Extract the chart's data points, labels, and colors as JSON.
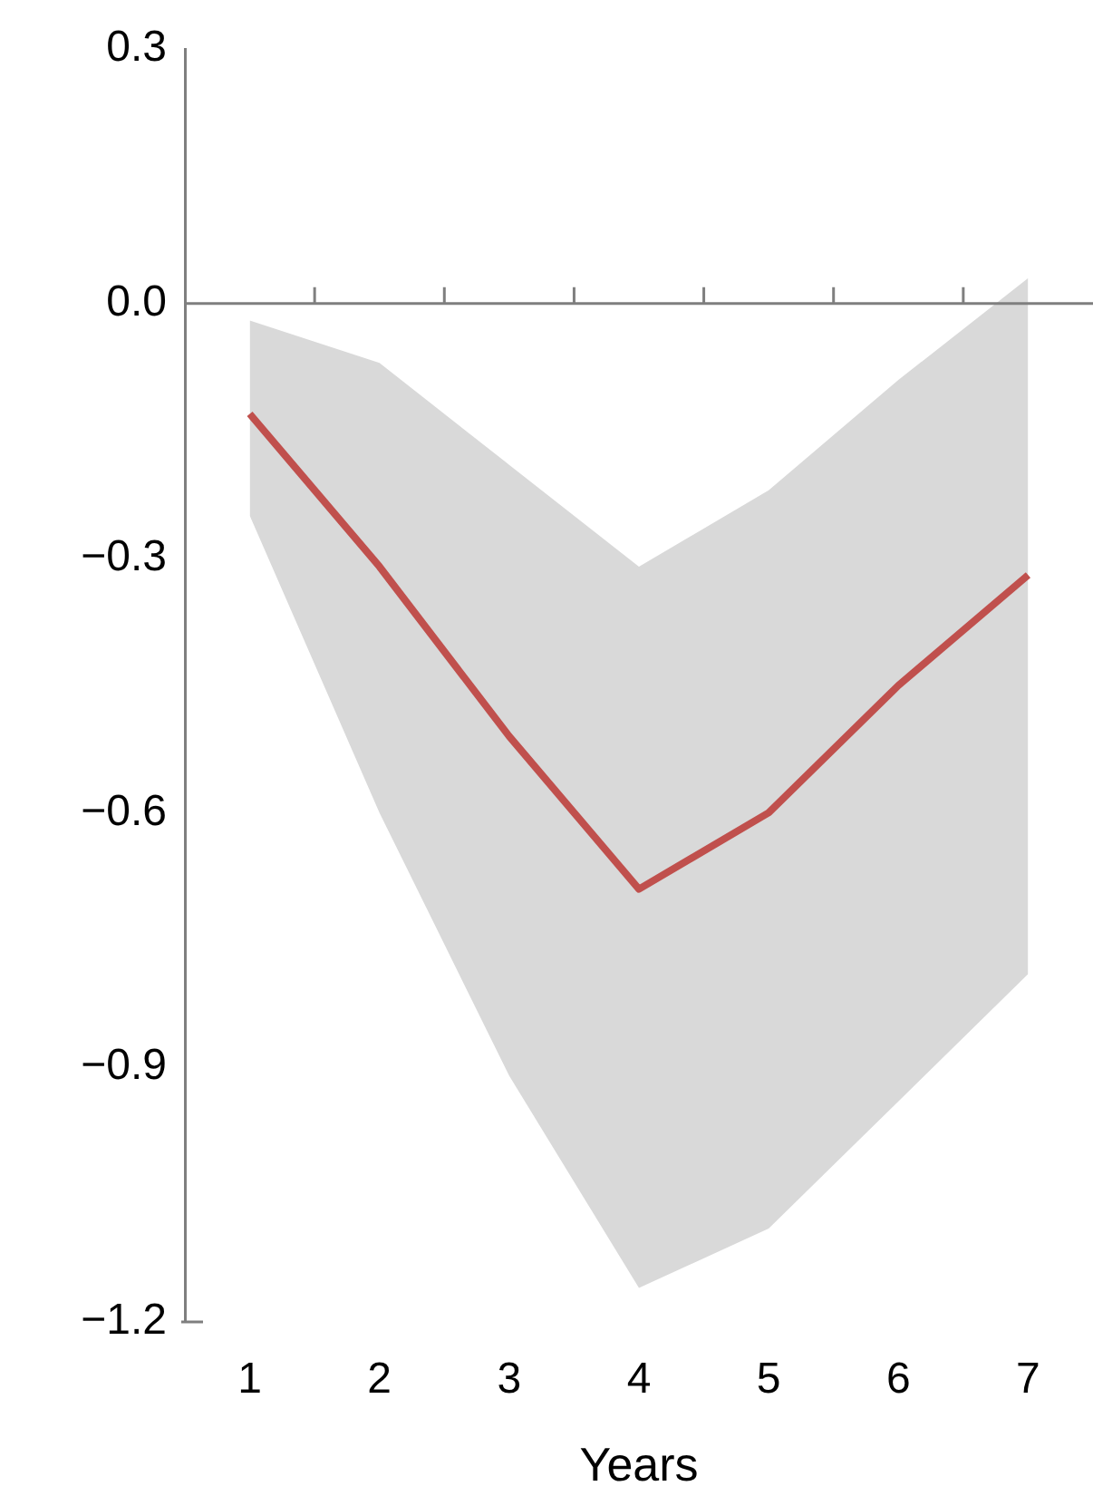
{
  "chart_data": {
    "type": "line",
    "xlabel": "Years",
    "x": [
      1,
      2,
      3,
      4,
      5,
      6,
      7
    ],
    "series": [
      {
        "color": "#c0504d",
        "values": [
          -0.13,
          -0.31,
          -0.51,
          -0.69,
          -0.6,
          -0.45,
          -0.32
        ],
        "lower": [
          -0.25,
          -0.6,
          -0.91,
          -1.16,
          -1.09,
          -0.94,
          -0.79
        ],
        "upper": [
          -0.02,
          -0.07,
          -0.19,
          -0.31,
          -0.22,
          -0.09,
          0.03
        ]
      }
    ],
    "xlim": [
      0.5,
      7.5
    ],
    "xticks": [
      1,
      2,
      3,
      4,
      5,
      6,
      7
    ],
    "ylim": [
      -1.2,
      0.3
    ],
    "yticks": [
      {
        "value": -1.2,
        "label": "−1.2"
      },
      {
        "value": -0.9,
        "label": "−0.9"
      },
      {
        "value": -0.6,
        "label": "−0.6"
      },
      {
        "value": -0.3,
        "label": "−0.3"
      },
      {
        "value": 0,
        "label": "0.0"
      },
      0.3
    ],
    "ref_lines": [
      {
        "axis": "y",
        "value": 0,
        "color": "#7f7f7f"
      }
    ],
    "grid": false,
    "legend": false,
    "marker": "none",
    "line_style": "solid"
  }
}
